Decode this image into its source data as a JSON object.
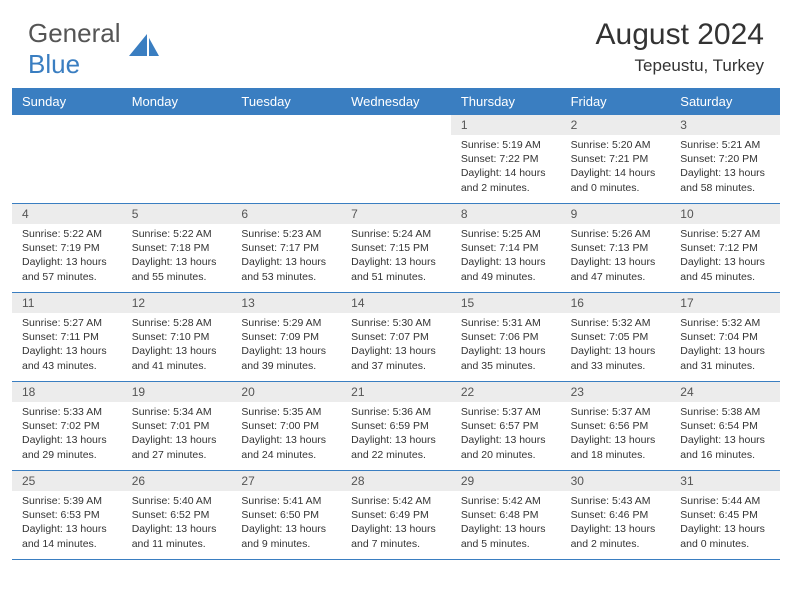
{
  "header": {
    "logo_text_1": "General",
    "logo_text_2": "Blue",
    "month_title": "August 2024",
    "location": "Tepeustu, Turkey"
  },
  "colors": {
    "header_bg": "#3a7ec1",
    "day_num_bg": "#ececec",
    "text": "#333333",
    "logo_gray": "#555555",
    "logo_blue": "#3a7ec1"
  },
  "day_names": [
    "Sunday",
    "Monday",
    "Tuesday",
    "Wednesday",
    "Thursday",
    "Friday",
    "Saturday"
  ],
  "weeks": [
    [
      null,
      null,
      null,
      null,
      {
        "n": "1",
        "sr": "5:19 AM",
        "ss": "7:22 PM",
        "dl": "14 hours and 2 minutes."
      },
      {
        "n": "2",
        "sr": "5:20 AM",
        "ss": "7:21 PM",
        "dl": "14 hours and 0 minutes."
      },
      {
        "n": "3",
        "sr": "5:21 AM",
        "ss": "7:20 PM",
        "dl": "13 hours and 58 minutes."
      }
    ],
    [
      {
        "n": "4",
        "sr": "5:22 AM",
        "ss": "7:19 PM",
        "dl": "13 hours and 57 minutes."
      },
      {
        "n": "5",
        "sr": "5:22 AM",
        "ss": "7:18 PM",
        "dl": "13 hours and 55 minutes."
      },
      {
        "n": "6",
        "sr": "5:23 AM",
        "ss": "7:17 PM",
        "dl": "13 hours and 53 minutes."
      },
      {
        "n": "7",
        "sr": "5:24 AM",
        "ss": "7:15 PM",
        "dl": "13 hours and 51 minutes."
      },
      {
        "n": "8",
        "sr": "5:25 AM",
        "ss": "7:14 PM",
        "dl": "13 hours and 49 minutes."
      },
      {
        "n": "9",
        "sr": "5:26 AM",
        "ss": "7:13 PM",
        "dl": "13 hours and 47 minutes."
      },
      {
        "n": "10",
        "sr": "5:27 AM",
        "ss": "7:12 PM",
        "dl": "13 hours and 45 minutes."
      }
    ],
    [
      {
        "n": "11",
        "sr": "5:27 AM",
        "ss": "7:11 PM",
        "dl": "13 hours and 43 minutes."
      },
      {
        "n": "12",
        "sr": "5:28 AM",
        "ss": "7:10 PM",
        "dl": "13 hours and 41 minutes."
      },
      {
        "n": "13",
        "sr": "5:29 AM",
        "ss": "7:09 PM",
        "dl": "13 hours and 39 minutes."
      },
      {
        "n": "14",
        "sr": "5:30 AM",
        "ss": "7:07 PM",
        "dl": "13 hours and 37 minutes."
      },
      {
        "n": "15",
        "sr": "5:31 AM",
        "ss": "7:06 PM",
        "dl": "13 hours and 35 minutes."
      },
      {
        "n": "16",
        "sr": "5:32 AM",
        "ss": "7:05 PM",
        "dl": "13 hours and 33 minutes."
      },
      {
        "n": "17",
        "sr": "5:32 AM",
        "ss": "7:04 PM",
        "dl": "13 hours and 31 minutes."
      }
    ],
    [
      {
        "n": "18",
        "sr": "5:33 AM",
        "ss": "7:02 PM",
        "dl": "13 hours and 29 minutes."
      },
      {
        "n": "19",
        "sr": "5:34 AM",
        "ss": "7:01 PM",
        "dl": "13 hours and 27 minutes."
      },
      {
        "n": "20",
        "sr": "5:35 AM",
        "ss": "7:00 PM",
        "dl": "13 hours and 24 minutes."
      },
      {
        "n": "21",
        "sr": "5:36 AM",
        "ss": "6:59 PM",
        "dl": "13 hours and 22 minutes."
      },
      {
        "n": "22",
        "sr": "5:37 AM",
        "ss": "6:57 PM",
        "dl": "13 hours and 20 minutes."
      },
      {
        "n": "23",
        "sr": "5:37 AM",
        "ss": "6:56 PM",
        "dl": "13 hours and 18 minutes."
      },
      {
        "n": "24",
        "sr": "5:38 AM",
        "ss": "6:54 PM",
        "dl": "13 hours and 16 minutes."
      }
    ],
    [
      {
        "n": "25",
        "sr": "5:39 AM",
        "ss": "6:53 PM",
        "dl": "13 hours and 14 minutes."
      },
      {
        "n": "26",
        "sr": "5:40 AM",
        "ss": "6:52 PM",
        "dl": "13 hours and 11 minutes."
      },
      {
        "n": "27",
        "sr": "5:41 AM",
        "ss": "6:50 PM",
        "dl": "13 hours and 9 minutes."
      },
      {
        "n": "28",
        "sr": "5:42 AM",
        "ss": "6:49 PM",
        "dl": "13 hours and 7 minutes."
      },
      {
        "n": "29",
        "sr": "5:42 AM",
        "ss": "6:48 PM",
        "dl": "13 hours and 5 minutes."
      },
      {
        "n": "30",
        "sr": "5:43 AM",
        "ss": "6:46 PM",
        "dl": "13 hours and 2 minutes."
      },
      {
        "n": "31",
        "sr": "5:44 AM",
        "ss": "6:45 PM",
        "dl": "13 hours and 0 minutes."
      }
    ]
  ],
  "labels": {
    "sunrise": "Sunrise: ",
    "sunset": "Sunset: ",
    "daylight": "Daylight: "
  }
}
